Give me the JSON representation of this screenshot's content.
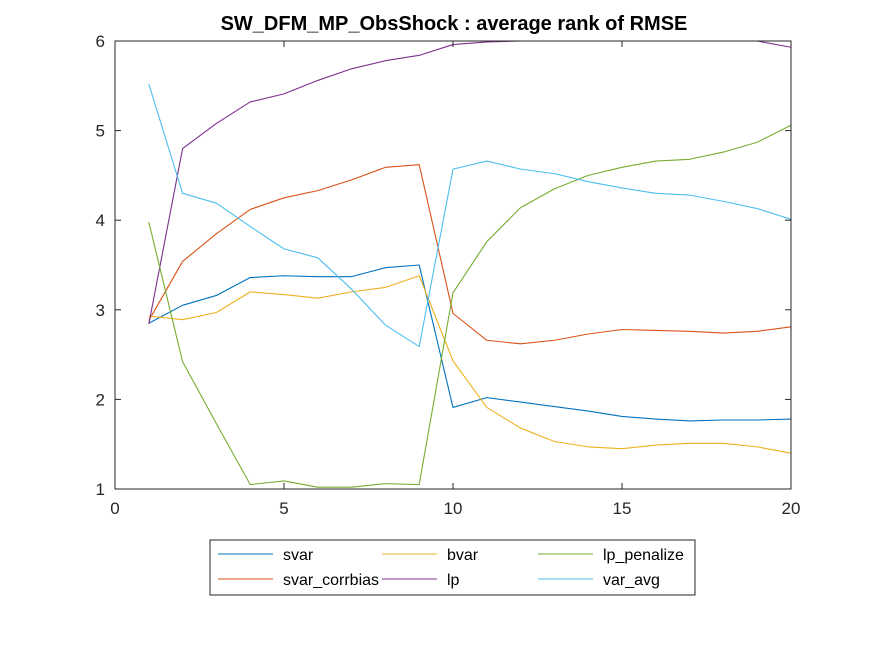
{
  "chart_data": {
    "type": "line",
    "title": "SW_DFM_MP_ObsShock : average rank of RMSE",
    "xlabel": "",
    "ylabel": "",
    "xlim": [
      0,
      20
    ],
    "ylim": [
      1,
      6
    ],
    "xticks": [
      0,
      5,
      10,
      15,
      20
    ],
    "yticks": [
      1,
      2,
      3,
      4,
      5,
      6
    ],
    "grid": false,
    "legend_position": "bottom",
    "x": [
      1,
      2,
      3,
      4,
      5,
      6,
      7,
      8,
      9,
      10,
      11,
      12,
      13,
      14,
      15,
      16,
      17,
      18,
      19,
      20
    ],
    "series": [
      {
        "name": "svar",
        "color": "#0072BD",
        "values": [
          2.85,
          3.05,
          3.16,
          3.36,
          3.38,
          3.37,
          3.37,
          3.47,
          3.5,
          1.91,
          2.02,
          1.97,
          1.92,
          1.87,
          1.81,
          1.78,
          1.76,
          1.77,
          1.77,
          1.78
        ]
      },
      {
        "name": "svar_corrbias",
        "color": "#D95319",
        "values": [
          2.88,
          3.54,
          3.85,
          4.12,
          4.25,
          4.33,
          4.45,
          4.59,
          4.62,
          2.96,
          2.66,
          2.62,
          2.66,
          2.73,
          2.78,
          2.77,
          2.76,
          2.74,
          2.76,
          2.81
        ]
      },
      {
        "name": "bvar",
        "color": "#EDB120",
        "values": [
          2.93,
          2.89,
          2.97,
          3.2,
          3.17,
          3.13,
          3.2,
          3.25,
          3.38,
          2.43,
          1.91,
          1.68,
          1.53,
          1.47,
          1.45,
          1.49,
          1.51,
          1.51,
          1.47,
          1.4
        ]
      },
      {
        "name": "lp",
        "color": "#7E2F8E",
        "values": [
          2.84,
          4.8,
          5.08,
          5.32,
          5.41,
          5.56,
          5.69,
          5.78,
          5.84,
          5.96,
          5.99,
          6.0,
          6.0,
          6.0,
          6.0,
          6.0,
          6.0,
          6.0,
          6.0,
          5.93
        ]
      },
      {
        "name": "lp_penalize",
        "color": "#77AC30",
        "values": [
          3.98,
          2.42,
          1.73,
          1.05,
          1.09,
          1.02,
          1.02,
          1.06,
          1.05,
          3.19,
          3.76,
          4.14,
          4.35,
          4.5,
          4.59,
          4.66,
          4.68,
          4.76,
          4.87,
          5.06
        ]
      },
      {
        "name": "var_avg",
        "color": "#4DBEEE",
        "values": [
          5.52,
          4.3,
          4.19,
          3.93,
          3.68,
          3.58,
          3.23,
          2.83,
          2.59,
          4.57,
          4.66,
          4.57,
          4.52,
          4.43,
          4.36,
          4.3,
          4.28,
          4.21,
          4.13,
          4.01
        ]
      }
    ],
    "legend_order": [
      "svar",
      "bvar",
      "lp_penalize",
      "svar_corrbias",
      "lp",
      "var_avg"
    ]
  }
}
